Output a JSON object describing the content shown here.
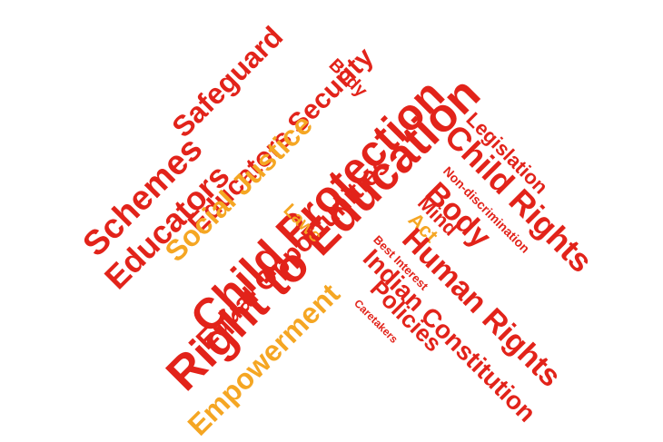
{
  "colors": {
    "red": "#e2231a",
    "orange": "#f5a623"
  },
  "words": {
    "safeguard": "Safeguard",
    "educators_security": "Educators Security",
    "schemes": "Schemes",
    "educators": "Educators",
    "social_justice": "Social Justice",
    "child_protection": "Child Protection",
    "right_to_education": "Right to Education",
    "body_top": "Body",
    "laws": "Laws",
    "equal_opportunities": "Equal Opportunities",
    "empowerment": "Empowerment",
    "legislation": "Legislation",
    "child_rights": "Child Rights",
    "non_discrimination": "Non-discrimination",
    "body_mid": "Body",
    "mind": "Mind",
    "act": "Act",
    "best_interest": "Best Interest",
    "human_rights": "Human Rights",
    "indian_constitution": "Indian Constitution",
    "policies": "Policies",
    "caretakers": "Caretakers"
  }
}
